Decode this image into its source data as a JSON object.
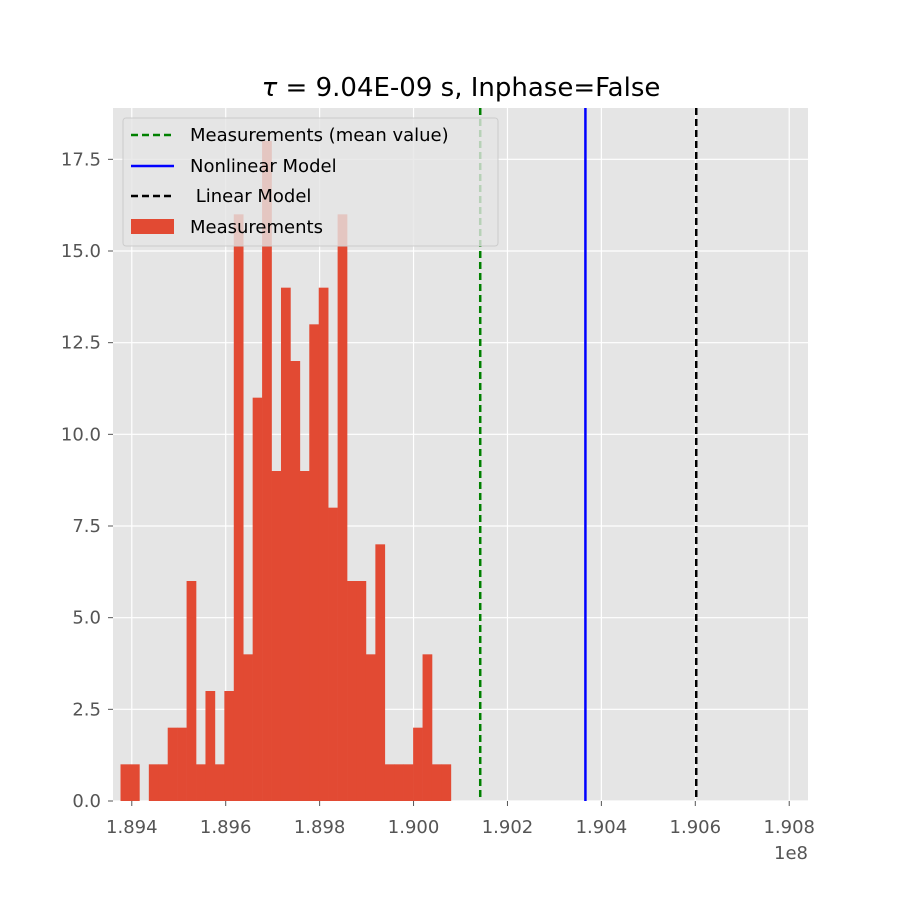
{
  "chart_data": {
    "type": "bar",
    "title_symbol": "τ",
    "title_rest": " = 9.04E-09 s, Inphase=False",
    "xlabel": "",
    "ylabel": "",
    "x_offset_label": "1e8",
    "xlim": [
      1.8936,
      1.9084
    ],
    "ylim": [
      0,
      18.9
    ],
    "x_ticks": [
      1.894,
      1.896,
      1.898,
      1.9,
      1.902,
      1.904,
      1.906,
      1.908
    ],
    "x_tick_labels": [
      "1.894",
      "1.896",
      "1.898",
      "1.900",
      "1.902",
      "1.904",
      "1.906",
      "1.908"
    ],
    "y_ticks": [
      0,
      2.5,
      5,
      7.5,
      10,
      12.5,
      15,
      17.5
    ],
    "y_tick_labels": [
      "0.0",
      "2.5",
      "5.0",
      "7.5",
      "10.0",
      "12.5",
      "15.0",
      "17.5"
    ],
    "grid": true,
    "legend_position": "upper-left",
    "bins": {
      "start": 1.89376,
      "width": 0.000201,
      "counts": [
        1,
        1,
        0,
        1,
        1,
        2,
        2,
        6,
        1,
        3,
        1,
        3,
        16,
        4,
        11,
        18,
        9,
        14,
        12,
        9,
        13,
        14,
        8,
        16,
        6,
        6,
        4,
        7,
        1,
        1,
        1,
        2,
        4,
        1,
        1
      ]
    },
    "series": [
      {
        "name": "Measurements",
        "kind": "histogram",
        "color": "#E24A33"
      }
    ],
    "vlines": [
      {
        "name": "Measurements (mean value)",
        "x": 1.90142,
        "color": "#008000",
        "style": "dashed"
      },
      {
        "name": "Nonlinear Model",
        "x": 1.90366,
        "color": "#0000ff",
        "style": "solid"
      },
      {
        "name": " Linear Model",
        "x": 1.90602,
        "color": "#000000",
        "style": "dashed"
      }
    ]
  },
  "colors": {
    "axes_bg": "#E5E5E5",
    "grid": "#ffffff",
    "bar": "#E24A33"
  }
}
